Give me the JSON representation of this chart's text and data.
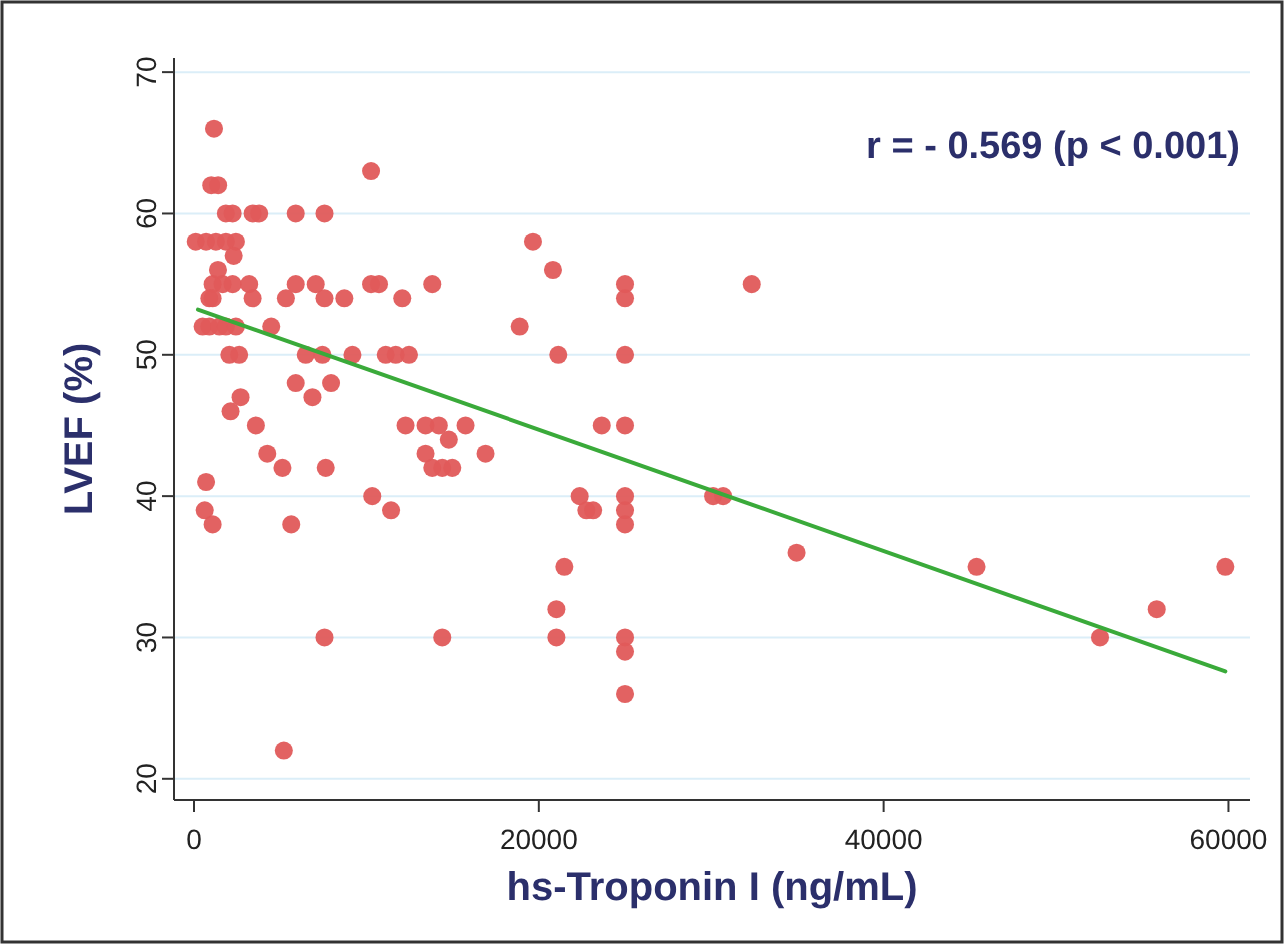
{
  "chart_data": {
    "type": "scatter",
    "xlabel": "hs-Troponin I (ng/mL)",
    "ylabel": "LVEF (%)",
    "annotations": [
      "r = - 0.569 (p < 0.001)"
    ],
    "xlim": [
      -1160,
      61250
    ],
    "ylim": [
      18.5,
      71
    ],
    "xticks": [
      0,
      20000,
      40000,
      60000
    ],
    "yticks": [
      20,
      30,
      40,
      50,
      60,
      70
    ],
    "grid": "y",
    "marker": "circle",
    "series": [
      {
        "color": "#e05a5a",
        "x": [
          1160,
          1000,
          1400,
          1850,
          2240,
          3400,
          3780,
          5900,
          7570,
          100,
          700,
          1270,
          1850,
          2430,
          2300,
          1390,
          1080,
          1660,
          2240,
          3200,
          890,
          1080,
          3400,
          500,
          890,
          1470,
          1850,
          2430,
          4480,
          2050,
          2620,
          2700,
          2120,
          3590,
          4250,
          5130,
          700,
          620,
          1080,
          5210,
          5640,
          5900,
          7060,
          5330,
          7570,
          8720,
          6480,
          7450,
          5900,
          6870,
          7950,
          7640,
          7570,
          9190,
          10270,
          10270,
          10730,
          10340,
          11430,
          12080,
          13820,
          11120,
          11700,
          12470,
          12270,
          13430,
          14200,
          15750,
          14780,
          13430,
          13820,
          14400,
          14980,
          16910,
          14400,
          18890,
          19660,
          20820,
          21130,
          21480,
          21020,
          21020,
          23650,
          25000,
          22370,
          22760,
          23150,
          25000,
          25000,
          25000,
          25000,
          25000,
          25000,
          25000,
          25000,
          25000,
          30110,
          30690,
          32350,
          34950,
          45390,
          52550,
          55840,
          59820
        ],
        "values": [
          66,
          62,
          62,
          60,
          60,
          60,
          60,
          60,
          60,
          58,
          58,
          58,
          58,
          58,
          57,
          56,
          55,
          55,
          55,
          55,
          54,
          54,
          54,
          52,
          52,
          52,
          52,
          52,
          52,
          50,
          50,
          47,
          46,
          45,
          43,
          42,
          41,
          39,
          38,
          22,
          38,
          55,
          55,
          54,
          54,
          54,
          50,
          50,
          48,
          47,
          48,
          42,
          30,
          50,
          63,
          55,
          55,
          40,
          39,
          54,
          55,
          50,
          50,
          50,
          45,
          45,
          45,
          45,
          44,
          43,
          42,
          42,
          42,
          43,
          30,
          52,
          58,
          56,
          50,
          35,
          32,
          30,
          45,
          45,
          40,
          39,
          39,
          55,
          54,
          50,
          40,
          39,
          38,
          30,
          29,
          26,
          40,
          40,
          55,
          36,
          35,
          30,
          32,
          35
        ]
      },
      {
        "type": "line",
        "color": "#3aaa3a",
        "x": [
          230,
          59820
        ],
        "values": [
          53.2,
          27.6
        ],
        "marker": "none",
        "line_style": "solid"
      }
    ]
  }
}
